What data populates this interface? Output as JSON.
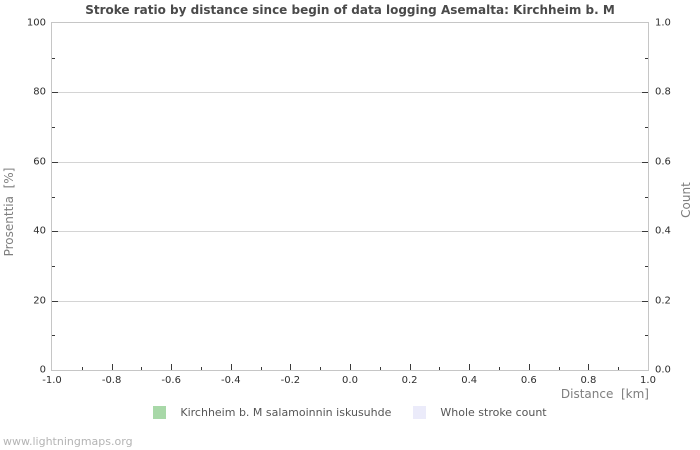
{
  "watermark": "www.lightningmaps.org",
  "chart_data": {
    "type": "bar",
    "title": "Stroke ratio by distance since begin of data logging Asemalta: Kirchheim b. M",
    "subtitle": "",
    "grid": "horizontal-major-only",
    "legend_position": "bottom-center",
    "plot_background": "#ffffff",
    "frame_color": "#c6c6c6",
    "gridline_color": "#d4d4d4",
    "x_axis": {
      "label": "Distance  [km]",
      "range": [
        -1.0,
        1.0
      ],
      "ticks": [
        -1.0,
        -0.8,
        -0.6,
        -0.4,
        -0.2,
        0.0,
        0.2,
        0.4,
        0.6,
        0.8,
        1.0
      ],
      "tick_labels": [
        "-1.0",
        "-0.8",
        "-0.6",
        "-0.4",
        "-0.2",
        "0.0",
        "0.2",
        "0.4",
        "0.6",
        "0.8",
        "1.0"
      ],
      "minor_ticks": [
        -0.9,
        -0.7,
        -0.5,
        -0.3,
        -0.1,
        0.1,
        0.3,
        0.5,
        0.7,
        0.9
      ]
    },
    "y_left": {
      "label": "Prosenttia  [%]",
      "range": [
        0,
        100
      ],
      "ticks": [
        0,
        20,
        40,
        60,
        80,
        100
      ],
      "tick_labels": [
        "0",
        "20",
        "40",
        "60",
        "80",
        "100"
      ],
      "minor_ticks": [
        10,
        30,
        50,
        70,
        90
      ]
    },
    "y_right": {
      "label": "Count",
      "range": [
        0.0,
        1.0
      ],
      "ticks": [
        0.0,
        0.2,
        0.4,
        0.6,
        0.8,
        1.0
      ],
      "tick_labels": [
        "0.0",
        "0.2",
        "0.4",
        "0.6",
        "0.8",
        "1.0"
      ],
      "minor_ticks": [
        0.1,
        0.3,
        0.5,
        0.7,
        0.9
      ]
    },
    "series": [
      {
        "name": "Kirchheim b. M salamoinnin iskusuhde",
        "color": "#a8d8a8",
        "values": []
      },
      {
        "name": "Whole stroke count",
        "color": "#ebebfa",
        "values": []
      }
    ],
    "note": "no data plotted - empty chart area"
  }
}
